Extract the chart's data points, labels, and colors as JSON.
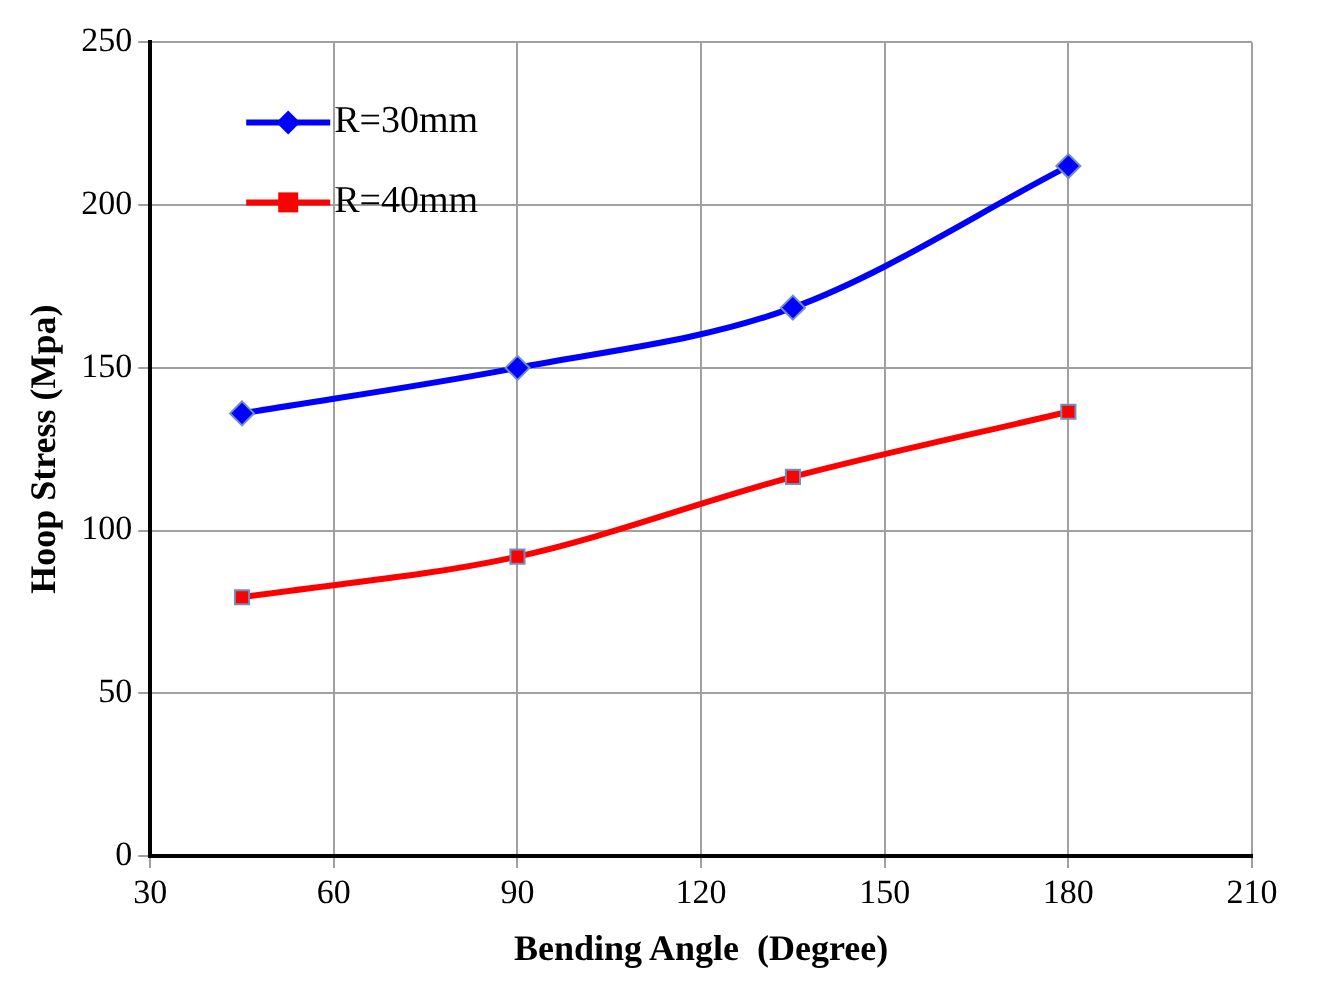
{
  "chart_data": {
    "type": "line",
    "xlabel": "Bending Angle  (Degree)",
    "ylabel": "Hoop Stress (Mpa)",
    "x": [
      45,
      90,
      135,
      180
    ],
    "series": [
      {
        "name": "R=30mm",
        "color": "#0000ff",
        "values": [
          136,
          150,
          168.5,
          212
        ],
        "marker": "diamond"
      },
      {
        "name": "R=40mm",
        "color": "#ff0000",
        "values": [
          79.5,
          92,
          116.5,
          136.5
        ],
        "marker": "square"
      }
    ],
    "xlim": [
      30,
      210
    ],
    "xticks": [
      30,
      60,
      90,
      120,
      150,
      180,
      210
    ],
    "ylim": [
      0,
      250
    ],
    "yticks": [
      0,
      50,
      100,
      150,
      200,
      250
    ],
    "grid": true,
    "legend": "top left",
    "line_style": "solid"
  }
}
